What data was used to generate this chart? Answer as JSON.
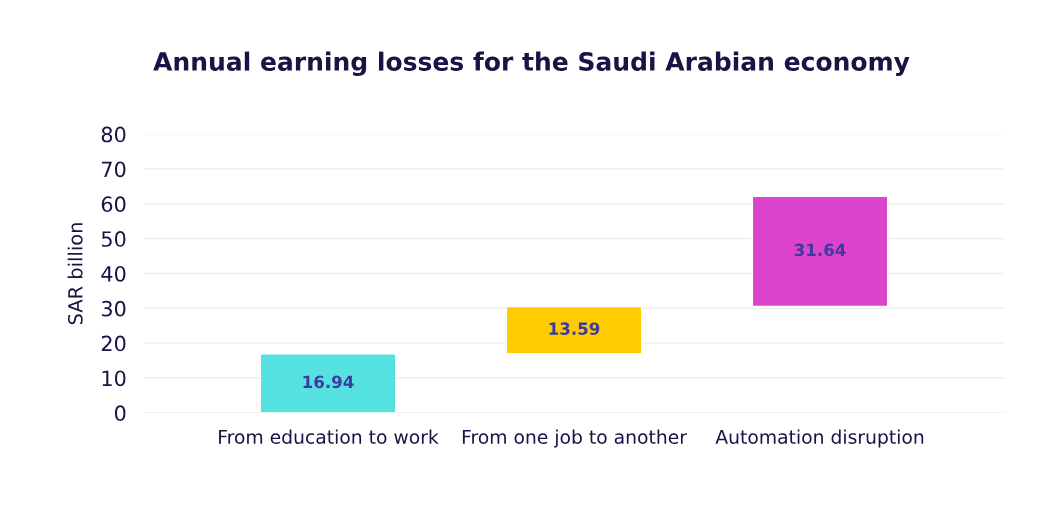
{
  "chart_data": {
    "type": "bar",
    "title": "Annual earning losses for the Saudi Arabian economy",
    "ylabel": "SAR billion",
    "categories": [
      "From education to work",
      "From one job to another",
      "Automation disruption"
    ],
    "values": [
      16.94,
      13.59,
      31.64
    ],
    "base": [
      0,
      16.94,
      30.53
    ],
    "colors": [
      "#56e1e1",
      "#ffcc00",
      "#dd44cc"
    ],
    "data_labels": true,
    "ylim": [
      0,
      80
    ],
    "yticks": [
      0,
      10,
      20,
      30,
      40,
      50,
      60,
      70,
      80
    ],
    "grid": "y"
  }
}
